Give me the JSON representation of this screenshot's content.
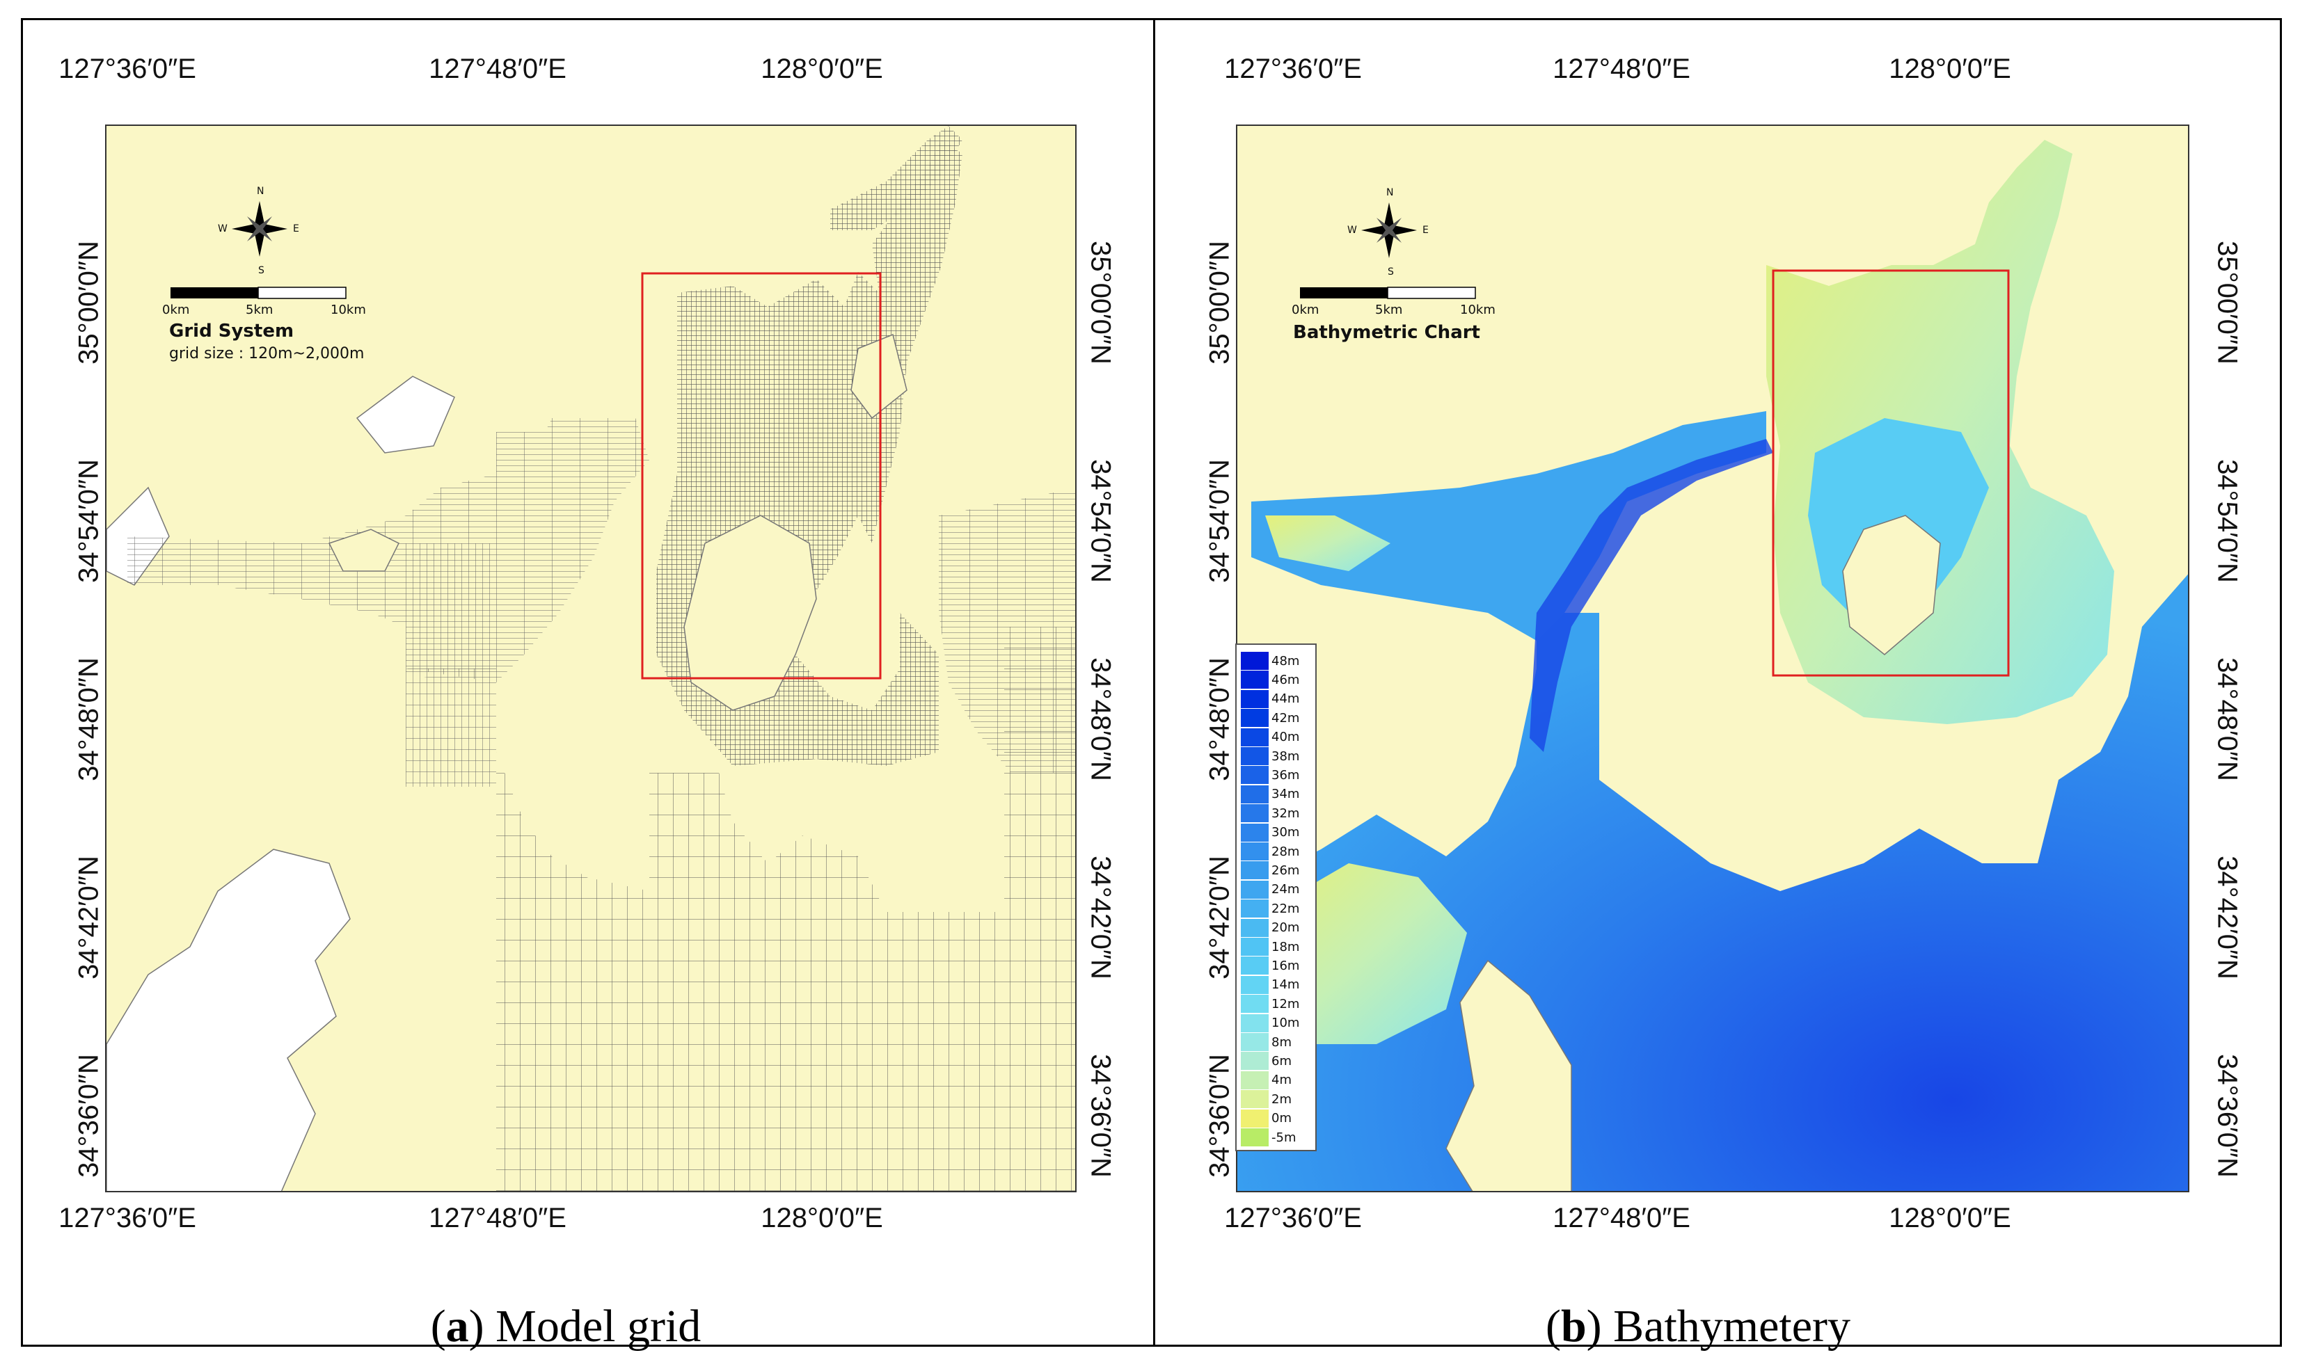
{
  "panels": {
    "a": {
      "caption_letter": "a",
      "caption_text": " Model grid",
      "map_title": "Grid System",
      "map_subtitle": "grid size : 120m~2,000m"
    },
    "b": {
      "caption_letter": "b",
      "caption_text": " Bathymetery",
      "map_title": "Bathymetric Chart"
    }
  },
  "axes": {
    "lon_top": [
      "127°36′0″E",
      "127°48′0″E",
      "128°0′0″E"
    ],
    "lon_bottom": [
      "127°36′0″E",
      "127°48′0″E",
      "128°0′0″E"
    ],
    "lat": [
      "35°00′0″N",
      "34°54′0″N",
      "34°48′0″N",
      "34°42′0″N",
      "34°36′0″N"
    ]
  },
  "compass": {
    "n": "N",
    "s": "S",
    "e": "E",
    "w": "W"
  },
  "scale_bar": {
    "labels": [
      "0km",
      "5km",
      "10km"
    ]
  },
  "legend": {
    "labels": [
      "48m",
      "46m",
      "44m",
      "42m",
      "40m",
      "38m",
      "36m",
      "34m",
      "32m",
      "30m",
      "28m",
      "26m",
      "24m",
      "22m",
      "20m",
      "18m",
      "16m",
      "14m",
      "12m",
      "10m",
      "8m",
      "6m",
      "4m",
      "2m",
      "0m",
      "-5m"
    ],
    "colors": [
      "#0018d8",
      "#0024dc",
      "#0030e0",
      "#003ce2",
      "#0a48e4",
      "#1256e6",
      "#1a62e8",
      "#206ee8",
      "#2678ea",
      "#2c84ec",
      "#3290ee",
      "#389cee",
      "#3ea6f0",
      "#44b0f2",
      "#4abaf2",
      "#50c4f4",
      "#58ccf4",
      "#62d4f4",
      "#70dcf2",
      "#82e2ee",
      "#96e8e6",
      "#aeecd4",
      "#c6f0b4",
      "#dcf29a",
      "#f0f070",
      "#b8ec66"
    ]
  },
  "colors": {
    "land": "#faf7c6",
    "grid_line": "#555555",
    "study_box": "#e02020"
  }
}
